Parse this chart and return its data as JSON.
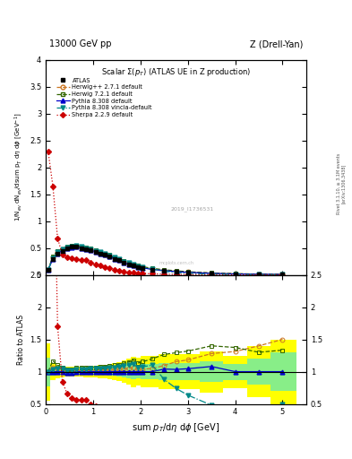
{
  "title_top": "13000 GeV pp",
  "title_right": "Z (Drell-Yan)",
  "main_title": "Scalar $\\Sigma(p_T)$ (ATLAS UE in Z production)",
  "xlabel": "sum $p_T$/d$\\eta$ d$\\phi$ [GeV]",
  "ylabel_main": "1/N$_{ev}$ dN$_{ev}$/dsum p$_T$ d$\\eta$ d$\\phi$ [GeV$^{-1}$]",
  "ylabel_ratio": "Ratio to ATLAS",
  "right_label1": "Rivet 3.1.10, ≥ 3.1M events",
  "right_label2": "[arXiv:1306.3438]",
  "watermark": "2019_I1736531",
  "xlim": [
    0,
    5.5
  ],
  "ylim_main": [
    0,
    4
  ],
  "ylim_ratio": [
    0.5,
    2.5
  ],
  "atlas_x": [
    0.05,
    0.15,
    0.25,
    0.35,
    0.45,
    0.55,
    0.65,
    0.75,
    0.85,
    0.95,
    1.05,
    1.15,
    1.25,
    1.35,
    1.45,
    1.55,
    1.65,
    1.75,
    1.85,
    1.95,
    2.05,
    2.25,
    2.5,
    2.75,
    3.0,
    3.5,
    4.0,
    4.5,
    5.0
  ],
  "atlas_y": [
    0.09,
    0.3,
    0.4,
    0.45,
    0.5,
    0.52,
    0.52,
    0.5,
    0.48,
    0.46,
    0.43,
    0.4,
    0.37,
    0.34,
    0.3,
    0.27,
    0.23,
    0.2,
    0.17,
    0.15,
    0.13,
    0.1,
    0.075,
    0.058,
    0.044,
    0.025,
    0.016,
    0.01,
    0.006
  ],
  "atlas_yerr": [
    0.01,
    0.01,
    0.01,
    0.01,
    0.01,
    0.01,
    0.01,
    0.01,
    0.01,
    0.01,
    0.01,
    0.01,
    0.01,
    0.01,
    0.01,
    0.01,
    0.01,
    0.01,
    0.01,
    0.008,
    0.008,
    0.006,
    0.005,
    0.004,
    0.003,
    0.002,
    0.001,
    0.001,
    0.001
  ],
  "herwig1_x": [
    0.05,
    0.15,
    0.25,
    0.35,
    0.45,
    0.55,
    0.65,
    0.75,
    0.85,
    0.95,
    1.05,
    1.15,
    1.25,
    1.35,
    1.45,
    1.55,
    1.65,
    1.75,
    1.85,
    1.95,
    2.05,
    2.25,
    2.5,
    2.75,
    3.0,
    3.5,
    4.0,
    4.5,
    5.0
  ],
  "herwig1_y": [
    0.09,
    0.32,
    0.42,
    0.47,
    0.51,
    0.53,
    0.53,
    0.51,
    0.49,
    0.47,
    0.44,
    0.41,
    0.38,
    0.35,
    0.31,
    0.28,
    0.24,
    0.21,
    0.18,
    0.155,
    0.135,
    0.105,
    0.082,
    0.067,
    0.052,
    0.032,
    0.021,
    0.014,
    0.009
  ],
  "herwig2_x": [
    0.05,
    0.15,
    0.25,
    0.35,
    0.45,
    0.55,
    0.65,
    0.75,
    0.85,
    0.95,
    1.05,
    1.15,
    1.25,
    1.35,
    1.45,
    1.55,
    1.65,
    1.75,
    1.85,
    1.95,
    2.05,
    2.25,
    2.5,
    2.75,
    3.0,
    3.5,
    4.0,
    4.5,
    5.0
  ],
  "herwig2_y": [
    0.09,
    0.35,
    0.44,
    0.48,
    0.52,
    0.54,
    0.55,
    0.53,
    0.51,
    0.49,
    0.46,
    0.43,
    0.4,
    0.37,
    0.33,
    0.3,
    0.26,
    0.23,
    0.2,
    0.17,
    0.15,
    0.12,
    0.095,
    0.075,
    0.058,
    0.035,
    0.022,
    0.013,
    0.008
  ],
  "pythia1_x": [
    0.05,
    0.15,
    0.25,
    0.35,
    0.45,
    0.55,
    0.65,
    0.75,
    0.85,
    0.95,
    1.05,
    1.15,
    1.25,
    1.35,
    1.45,
    1.55,
    1.65,
    1.75,
    1.85,
    1.95,
    2.05,
    2.25,
    2.5,
    2.75,
    3.0,
    3.5,
    4.0,
    4.5,
    5.0
  ],
  "pythia1_y": [
    0.09,
    0.3,
    0.4,
    0.45,
    0.49,
    0.51,
    0.52,
    0.5,
    0.48,
    0.46,
    0.43,
    0.4,
    0.37,
    0.34,
    0.3,
    0.27,
    0.23,
    0.2,
    0.17,
    0.15,
    0.13,
    0.1,
    0.078,
    0.06,
    0.046,
    0.027,
    0.016,
    0.01,
    0.006
  ],
  "pythia2_x": [
    0.05,
    0.15,
    0.25,
    0.35,
    0.45,
    0.55,
    0.65,
    0.75,
    0.85,
    0.95,
    1.05,
    1.15,
    1.25,
    1.35,
    1.45,
    1.55,
    1.65,
    1.75,
    1.85,
    1.95,
    2.05,
    2.25,
    2.5,
    2.75,
    3.0,
    3.5,
    4.0,
    4.5,
    5.0
  ],
  "pythia2_y": [
    0.09,
    0.31,
    0.42,
    0.47,
    0.51,
    0.53,
    0.54,
    0.52,
    0.5,
    0.48,
    0.45,
    0.42,
    0.39,
    0.36,
    0.32,
    0.29,
    0.25,
    0.22,
    0.19,
    0.16,
    0.14,
    0.11,
    0.066,
    0.043,
    0.028,
    0.012,
    0.007,
    0.004,
    0.003
  ],
  "sherpa_x": [
    0.05,
    0.15,
    0.25,
    0.35,
    0.45,
    0.55,
    0.65,
    0.75,
    0.85,
    0.95,
    1.05,
    1.15,
    1.25,
    1.35,
    1.45,
    1.55,
    1.65,
    1.75,
    1.85,
    1.95,
    2.05,
    2.25,
    2.5,
    2.75,
    3.0,
    3.5,
    4.0,
    4.5,
    5.0
  ],
  "sherpa_y": [
    2.3,
    1.65,
    0.68,
    0.38,
    0.33,
    0.31,
    0.29,
    0.28,
    0.27,
    0.23,
    0.2,
    0.18,
    0.15,
    0.12,
    0.1,
    0.08,
    0.065,
    0.05,
    0.04,
    0.033,
    0.027,
    0.018,
    0.012,
    0.008,
    0.005,
    0.002,
    0.001,
    0.0006,
    0.0003
  ],
  "atlas_color": "#000000",
  "herwig1_color": "#CC7722",
  "herwig2_color": "#336600",
  "pythia1_color": "#0000CC",
  "pythia2_color": "#008888",
  "sherpa_color": "#CC0000",
  "band_yellow": "#FFFF00",
  "band_green": "#88EE88"
}
